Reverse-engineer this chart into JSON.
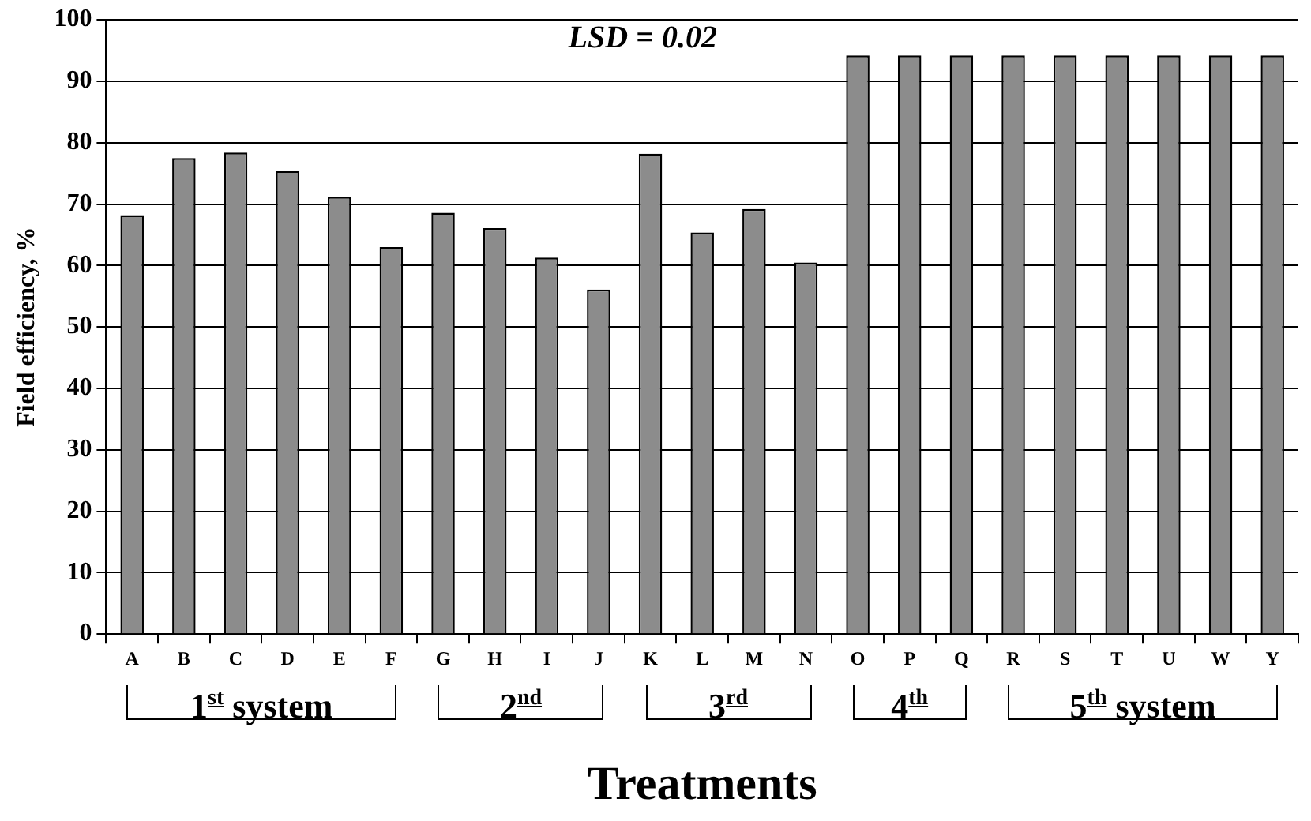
{
  "chart_data": {
    "type": "bar",
    "xlabel": "Treatments",
    "ylabel": "Field efficiency, %",
    "categories": [
      "A",
      "B",
      "C",
      "D",
      "E",
      "F",
      "G",
      "H",
      "I",
      "J",
      "K",
      "L",
      "M",
      "N",
      "O",
      "P",
      "Q",
      "R",
      "S",
      "T",
      "U",
      "W",
      "Y"
    ],
    "values": [
      68.2,
      77.5,
      78.4,
      75.4,
      71.2,
      63,
      68.6,
      66.1,
      61.3,
      56.1,
      78.2,
      65.4,
      69.2,
      60.5,
      94.2,
      94.2,
      94.2,
      94.2,
      94.2,
      94.2,
      94.2,
      94.2,
      94.2
    ],
    "color": "#8c8c8c",
    "ylim": [
      0,
      100
    ],
    "yticks": [
      0,
      10,
      20,
      30,
      40,
      50,
      60,
      70,
      80,
      90,
      100
    ],
    "grid": "y",
    "legend": false,
    "annotations": [
      "LSD = 0.02",
      "1$^{st}$ system",
      "2$^{nd}$",
      "3$^{rd}$",
      "4$^{th}$",
      "5$^{th}$ system"
    ]
  }
}
